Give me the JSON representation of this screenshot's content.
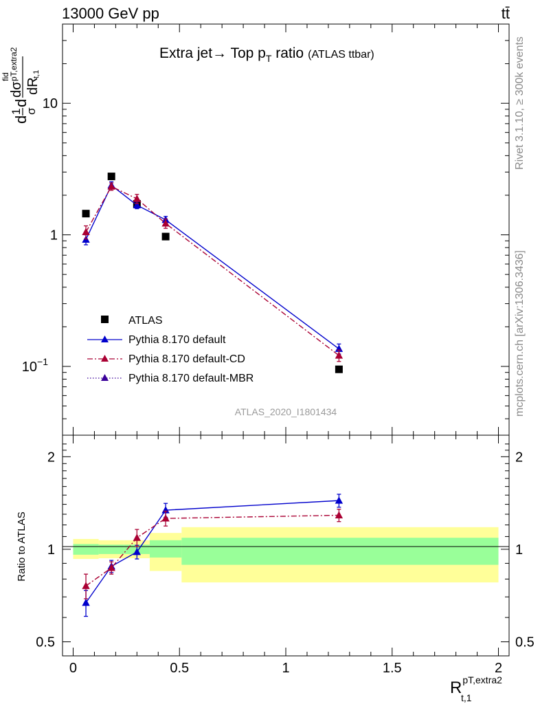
{
  "header": {
    "left": "13000 GeV pp",
    "right": "tt̄"
  },
  "colors": {
    "atlas": "#000000",
    "default": "#0000cc",
    "cd": "#aa0033",
    "mbr": "#3a0099",
    "band_inner": "#99ff99",
    "band_outer": "#ffff99"
  },
  "side_labels": {
    "rivet": "Rivet 3.1.10, ≥ 300k events",
    "mcplots": "mcplots.cern.ch [arXiv:1306.3436]"
  },
  "chart_data": [
    {
      "type": "scatter",
      "title": "Extra jet→ Top p",
      "title_sub": "T",
      "title_tail": " ratio",
      "title_note": "(ATLAS ttbar)",
      "analysis_tag": "ATLAS_2020_I1801434",
      "ylabel_main": "d",
      "ylabel_frac_num": "1",
      "ylabel_frac_den": "σ",
      "ylabel_mid": "d",
      "ylabel_inner_num": "dσ",
      "ylabel_inner_sup": "fid",
      "ylabel_inner_sub": "pT,extra2",
      "ylabel_den": "dR",
      "ylabel_den_sub": "t,1",
      "yscale": "log",
      "ylim": [
        0.03,
        40
      ],
      "xlim": [
        -0.05,
        2.05
      ],
      "yticks": [
        {
          "v": 0.1,
          "base": "10",
          "exp": "−1"
        },
        {
          "v": 1,
          "base": "1",
          "exp": ""
        },
        {
          "v": 10,
          "base": "10",
          "exp": ""
        }
      ],
      "legend_position": "bottom-left",
      "series": [
        {
          "name": "ATLAS",
          "marker": "square",
          "x": [
            0.06,
            0.18,
            0.3,
            0.435,
            1.25
          ],
          "y": [
            1.45,
            2.78,
            1.72,
            0.97,
            0.095
          ]
        },
        {
          "name": "Pythia 8.170 default",
          "line": "solid",
          "marker": "triangle",
          "x": [
            0.06,
            0.18,
            0.3,
            0.435,
            1.25
          ],
          "y": [
            0.92,
            2.38,
            1.68,
            1.3,
            0.136
          ],
          "err": [
            0.08,
            0.15,
            0.1,
            0.08,
            0.012
          ]
        },
        {
          "name": "Pythia 8.170 default-CD",
          "line": "dashdot",
          "marker": "triangle",
          "x": [
            0.06,
            0.18,
            0.3,
            0.435,
            1.25
          ],
          "y": [
            1.05,
            2.33,
            1.88,
            1.22,
            0.121
          ],
          "err": [
            0.12,
            0.15,
            0.15,
            0.1,
            0.012
          ]
        },
        {
          "name": "Pythia 8.170 default-MBR",
          "line": "dotted",
          "marker": "triangle",
          "x": [],
          "y": []
        }
      ]
    },
    {
      "type": "line",
      "ylabel": "Ratio to ATLAS",
      "xlabel_main": "R",
      "xlabel_sup": "pT,extra2",
      "xlabel_sub": "t,1",
      "yscale": "log",
      "ylim": [
        0.45,
        2.35
      ],
      "xlim": [
        -0.05,
        2.05
      ],
      "xticks": [
        {
          "v": 0,
          "label": "0"
        },
        {
          "v": 0.5,
          "label": "0.5"
        },
        {
          "v": 1,
          "label": "1"
        },
        {
          "v": 1.5,
          "label": "1.5"
        },
        {
          "v": 2,
          "label": "2"
        }
      ],
      "yticks": [
        {
          "v": 0.5,
          "label": "0.5"
        },
        {
          "v": 1,
          "label": "1"
        },
        {
          "v": 2,
          "label": "2"
        }
      ],
      "bands": [
        {
          "x0": 0.0,
          "x1": 0.12,
          "inner": [
            0.96,
            1.04
          ],
          "outer": [
            0.93,
            1.08
          ]
        },
        {
          "x0": 0.12,
          "x1": 0.24,
          "inner": [
            0.965,
            1.035
          ],
          "outer": [
            0.935,
            1.07
          ]
        },
        {
          "x0": 0.24,
          "x1": 0.36,
          "inner": [
            0.965,
            1.035
          ],
          "outer": [
            0.935,
            1.07
          ]
        },
        {
          "x0": 0.36,
          "x1": 0.51,
          "inner": [
            0.94,
            1.07
          ],
          "outer": [
            0.85,
            1.13
          ]
        },
        {
          "x0": 0.51,
          "x1": 2.0,
          "inner": [
            0.89,
            1.09
          ],
          "outer": [
            0.78,
            1.18
          ]
        }
      ],
      "series": [
        {
          "name": "Pythia 8.170 default",
          "line": "solid",
          "marker": "triangle",
          "x": [
            0.06,
            0.18,
            0.3,
            0.435,
            1.25
          ],
          "y": [
            0.67,
            0.88,
            0.98,
            1.34,
            1.44
          ],
          "err": [
            0.065,
            0.04,
            0.05,
            0.07,
            0.07
          ]
        },
        {
          "name": "Pythia 8.170 default-CD",
          "line": "dashdot",
          "marker": "triangle",
          "x": [
            0.06,
            0.18,
            0.3,
            0.435,
            1.25
          ],
          "y": [
            0.76,
            0.87,
            1.09,
            1.26,
            1.29
          ],
          "err": [
            0.07,
            0.04,
            0.07,
            0.07,
            0.06
          ]
        }
      ]
    }
  ]
}
